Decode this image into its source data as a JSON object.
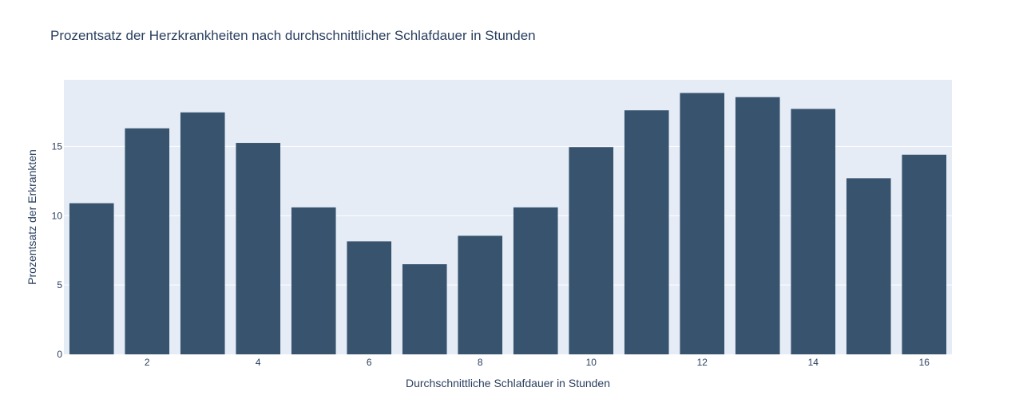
{
  "chart_data": {
    "type": "bar",
    "title": "Prozentsatz der Herzkrankheiten nach durchschnittlicher Schlafdauer in Stunden",
    "xlabel": "Durchschnittliche Schlafdauer in Stunden",
    "ylabel": "Prozentsatz der Erkrankten",
    "x": [
      1,
      2,
      3,
      4,
      5,
      6,
      7,
      8,
      9,
      10,
      11,
      12,
      13,
      14,
      15,
      16
    ],
    "values": [
      10.9,
      16.3,
      17.45,
      15.25,
      10.6,
      8.15,
      6.5,
      8.55,
      10.6,
      14.95,
      17.6,
      18.85,
      18.55,
      17.7,
      12.7,
      14.4
    ],
    "xlim": [
      0.5,
      16.5
    ],
    "ylim": [
      0,
      19.8
    ],
    "xticks": [
      2,
      4,
      6,
      8,
      10,
      12,
      14,
      16
    ],
    "yticks": [
      0,
      5,
      10,
      15
    ],
    "grid": true,
    "colors": {
      "bar": "#38536e",
      "plot_background": "#e5ecf6",
      "grid": "#ffffff",
      "text": "#2a3f5f"
    }
  }
}
